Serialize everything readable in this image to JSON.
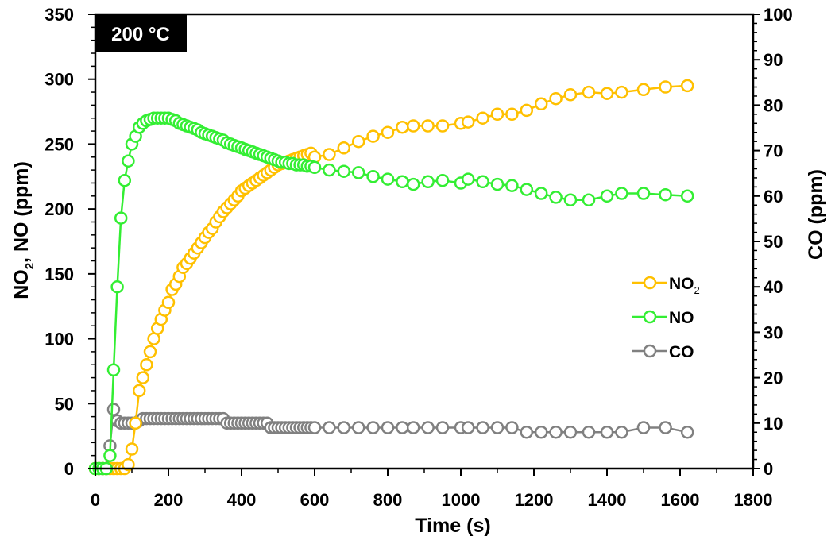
{
  "chart_data": {
    "type": "line",
    "annotation": "200 °C",
    "xlabel": "Time (s)",
    "ylabel_left_parts": [
      "NO",
      "2",
      ", NO (ppm)"
    ],
    "ylabel_right": "CO (ppm)",
    "xlim": [
      0,
      1800
    ],
    "ylim_left": [
      0,
      350
    ],
    "ylim_right": [
      0,
      100
    ],
    "x_ticks": [
      "0",
      "200",
      "400",
      "600",
      "800",
      "1000",
      "1200",
      "1400",
      "1600",
      "1800"
    ],
    "y_left_ticks": [
      "0",
      "50",
      "100",
      "150",
      "200",
      "250",
      "300",
      "350"
    ],
    "y_right_ticks": [
      "0",
      "10",
      "20",
      "30",
      "40",
      "50",
      "60",
      "70",
      "80",
      "90",
      "100"
    ],
    "legend_position": "center-right",
    "grid": false,
    "series": [
      {
        "name": "NO2",
        "legend_main": "NO",
        "legend_sub": "2",
        "axis": "left",
        "color": "#FFC000",
        "x": [
          0,
          10,
          20,
          30,
          40,
          50,
          60,
          70,
          80,
          90,
          100,
          110,
          120,
          130,
          140,
          150,
          160,
          170,
          180,
          190,
          200,
          210,
          220,
          230,
          240,
          250,
          260,
          270,
          280,
          290,
          300,
          310,
          320,
          330,
          340,
          350,
          360,
          370,
          380,
          390,
          400,
          410,
          420,
          430,
          440,
          450,
          460,
          470,
          480,
          490,
          500,
          510,
          520,
          530,
          540,
          550,
          560,
          570,
          580,
          590,
          600,
          640,
          680,
          720,
          760,
          800,
          840,
          870,
          910,
          950,
          1000,
          1020,
          1060,
          1100,
          1140,
          1180,
          1220,
          1260,
          1300,
          1350,
          1400,
          1440,
          1500,
          1560,
          1620
        ],
        "y": [
          0,
          0,
          0,
          0,
          0,
          0,
          0,
          0,
          0,
          3,
          15,
          35,
          60,
          70,
          80,
          90,
          100,
          108,
          115,
          122,
          128,
          138,
          142,
          148,
          155,
          158,
          162,
          166,
          170,
          174,
          178,
          182,
          185,
          190,
          194,
          198,
          201,
          204,
          207,
          210,
          214,
          216,
          218,
          220,
          222,
          224,
          226,
          228,
          230,
          232,
          234,
          235,
          236,
          237,
          238,
          239,
          240,
          241,
          242,
          243,
          240,
          242,
          247,
          252,
          256,
          259,
          263,
          264,
          264,
          264,
          266,
          267,
          270,
          273,
          273,
          276,
          281,
          285,
          288,
          290,
          289,
          290,
          292,
          294,
          295
        ]
      },
      {
        "name": "NO",
        "legend_main": "NO",
        "legend_sub": "",
        "axis": "left",
        "color": "#33EE33",
        "x": [
          0,
          10,
          20,
          30,
          40,
          50,
          60,
          70,
          80,
          90,
          100,
          110,
          120,
          130,
          140,
          150,
          160,
          170,
          180,
          190,
          200,
          210,
          220,
          230,
          240,
          250,
          260,
          270,
          280,
          290,
          300,
          310,
          320,
          330,
          340,
          350,
          360,
          370,
          380,
          390,
          400,
          410,
          420,
          430,
          440,
          450,
          460,
          470,
          480,
          490,
          500,
          510,
          520,
          530,
          540,
          550,
          560,
          570,
          580,
          590,
          600,
          640,
          680,
          720,
          760,
          800,
          840,
          870,
          910,
          950,
          1000,
          1020,
          1060,
          1100,
          1140,
          1180,
          1220,
          1260,
          1300,
          1350,
          1400,
          1440,
          1500,
          1560,
          1620
        ],
        "y": [
          0,
          0,
          0,
          0,
          10,
          76,
          140,
          193,
          222,
          237,
          250,
          256,
          263,
          266,
          268,
          269,
          270,
          270,
          270,
          270,
          270,
          269,
          268,
          266,
          265,
          264,
          263,
          262,
          261,
          259,
          258,
          257,
          256,
          255,
          254,
          253,
          251,
          250,
          249,
          248,
          247,
          246,
          245,
          244,
          243,
          242,
          241,
          240,
          239,
          238,
          237,
          236,
          236,
          235,
          235,
          234,
          234,
          234,
          233,
          233,
          232,
          230,
          229,
          228,
          225,
          223,
          221,
          219,
          221,
          222,
          220,
          223,
          221,
          219,
          218,
          215,
          212,
          209,
          207,
          207,
          210,
          212,
          212,
          211,
          210
        ]
      },
      {
        "name": "CO",
        "legend_main": "CO",
        "legend_sub": "",
        "axis": "right",
        "color": "#808080",
        "x": [
          0,
          10,
          20,
          30,
          40,
          50,
          60,
          70,
          80,
          90,
          100,
          110,
          120,
          130,
          140,
          150,
          160,
          170,
          180,
          190,
          200,
          210,
          220,
          230,
          240,
          250,
          260,
          270,
          280,
          290,
          300,
          310,
          320,
          330,
          340,
          350,
          360,
          370,
          380,
          390,
          400,
          410,
          420,
          430,
          440,
          450,
          460,
          470,
          480,
          490,
          500,
          510,
          520,
          530,
          540,
          550,
          560,
          570,
          580,
          590,
          600,
          640,
          680,
          720,
          760,
          800,
          840,
          870,
          910,
          950,
          1000,
          1020,
          1060,
          1100,
          1140,
          1180,
          1220,
          1260,
          1300,
          1350,
          1400,
          1440,
          1500,
          1560,
          1620
        ],
        "y": [
          0,
          0,
          0,
          0,
          5,
          13,
          10.5,
          10,
          10,
          10,
          10,
          10,
          10.5,
          11,
          11,
          11,
          11,
          11,
          11,
          11,
          11,
          11,
          11,
          11,
          11,
          11,
          11,
          11,
          11,
          11,
          11,
          11,
          11,
          11,
          11,
          11,
          10,
          10,
          10,
          10,
          10,
          10,
          10,
          10,
          10,
          10,
          10,
          10,
          9,
          9,
          9,
          9,
          9,
          9,
          9,
          9,
          9,
          9,
          9,
          9,
          9,
          9,
          9,
          9,
          9,
          9,
          9,
          9,
          9,
          9,
          9,
          9,
          9,
          9,
          9,
          8,
          8,
          8,
          8,
          8,
          8,
          8,
          9,
          9,
          8
        ]
      }
    ]
  }
}
